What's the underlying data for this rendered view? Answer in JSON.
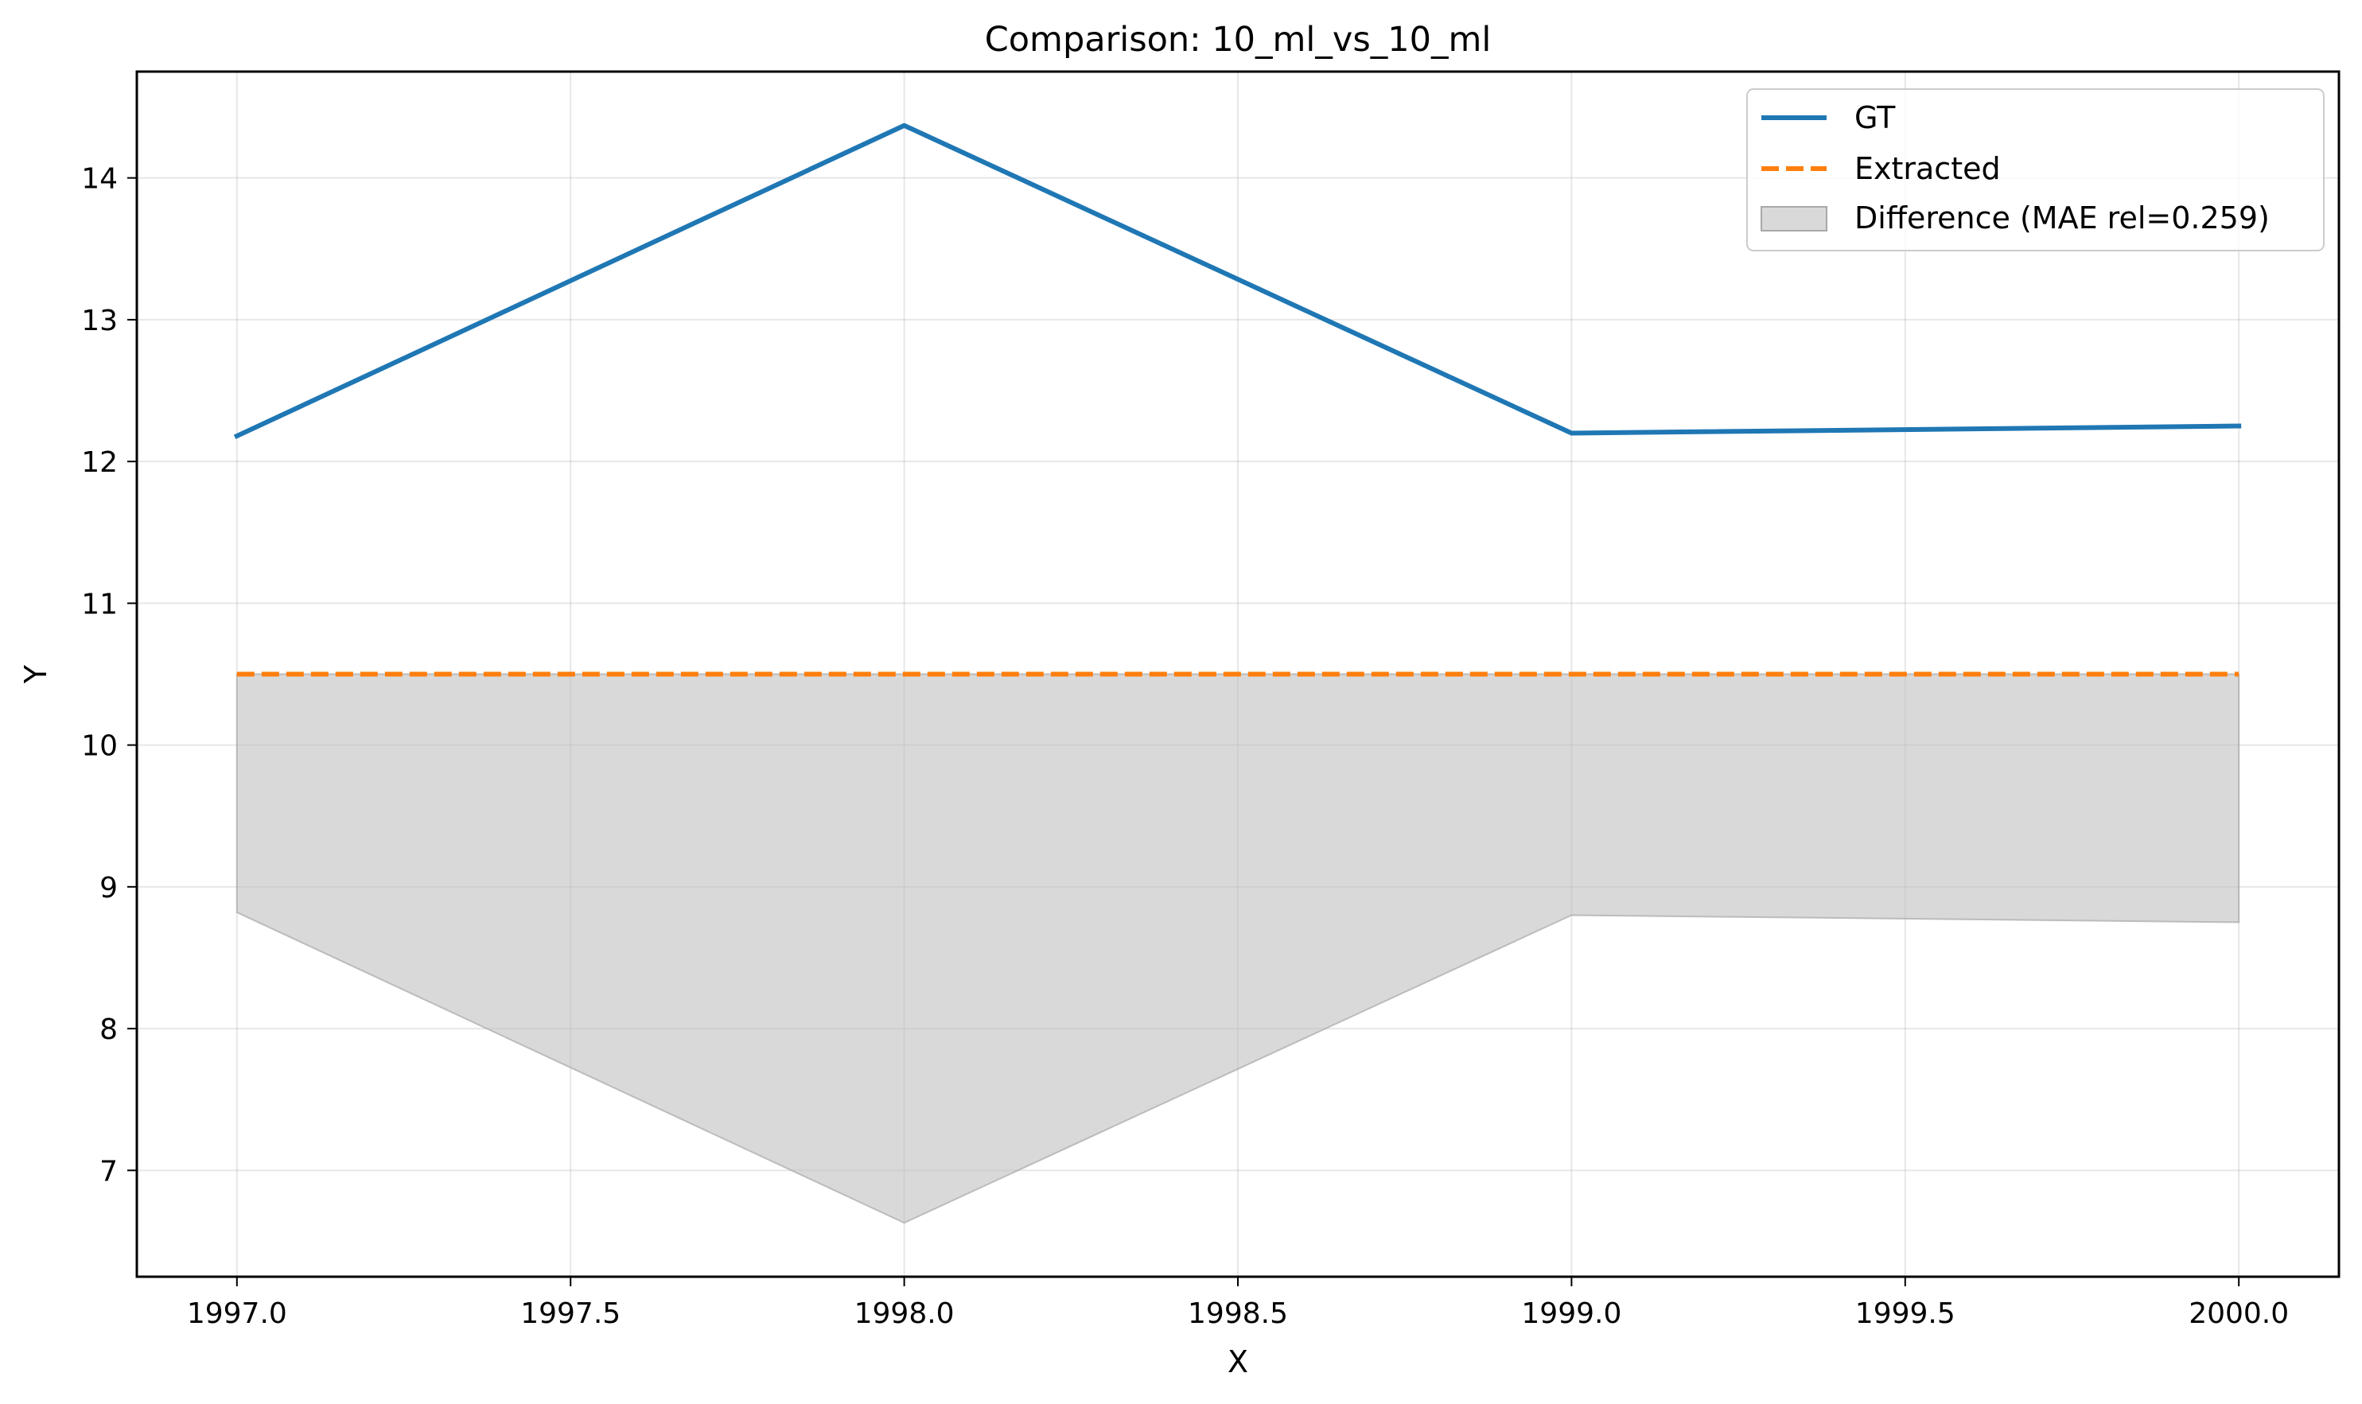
{
  "chart_data": {
    "type": "line",
    "title": "Comparison: 10_ml_vs_10_ml",
    "xlabel": "X",
    "ylabel": "Y",
    "xlim": [
      1996.85,
      2000.15
    ],
    "ylim": [
      6.25,
      14.75
    ],
    "xticks": [
      1997.0,
      1997.5,
      1998.0,
      1998.5,
      1999.0,
      1999.5,
      2000.0
    ],
    "xtick_labels": [
      "1997.0",
      "1997.5",
      "1998.0",
      "1998.5",
      "1999.0",
      "1999.5",
      "2000.0"
    ],
    "yticks": [
      7,
      8,
      9,
      10,
      11,
      12,
      13,
      14
    ],
    "ytick_labels": [
      "7",
      "8",
      "9",
      "10",
      "11",
      "12",
      "13",
      "14"
    ],
    "grid": true,
    "legend_position": "top-right",
    "x": [
      1997,
      1998,
      1999,
      2000
    ],
    "series": [
      {
        "name": "GT",
        "values": [
          12.18,
          14.37,
          12.2,
          12.25
        ],
        "color": "#1f77b4",
        "style": "solid"
      },
      {
        "name": "Extracted",
        "values": [
          10.5,
          10.5,
          10.5,
          10.5
        ],
        "color": "#ff7f0e",
        "style": "dashed"
      }
    ],
    "fill": {
      "name": "Difference (MAE rel=0.259)",
      "color": "#bfbfbf",
      "lower": [
        8.82,
        6.63,
        8.8,
        8.75
      ],
      "upper": [
        10.5,
        10.5,
        10.5,
        10.5
      ]
    }
  }
}
